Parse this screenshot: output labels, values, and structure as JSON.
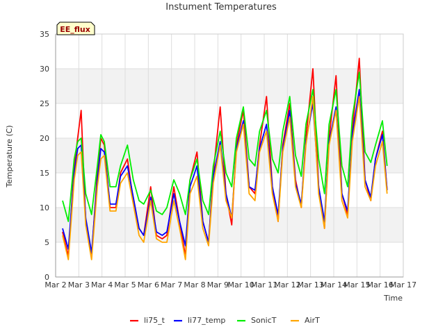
{
  "chart_data": {
    "type": "line",
    "title": "Instument Temperatures",
    "xlabel": "Time",
    "ylabel": "Temperature (C)",
    "annotation": "EE_flux",
    "xlim": [
      2.0,
      17.0
    ],
    "ylim": [
      0,
      35
    ],
    "x_ticks": [
      {
        "value": 2,
        "label": "Mar 2"
      },
      {
        "value": 3,
        "label": "Mar 3"
      },
      {
        "value": 4,
        "label": "Mar 4"
      },
      {
        "value": 5,
        "label": "Mar 5"
      },
      {
        "value": 6,
        "label": "Mar 6"
      },
      {
        "value": 7,
        "label": "Mar 7"
      },
      {
        "value": 8,
        "label": "Mar 8"
      },
      {
        "value": 9,
        "label": "Mar 9"
      },
      {
        "value": 10,
        "label": "Mar 10"
      },
      {
        "value": 11,
        "label": "Mar 11"
      },
      {
        "value": 12,
        "label": "Mar 12"
      },
      {
        "value": 13,
        "label": "Mar 13"
      },
      {
        "value": 14,
        "label": "Mar 14"
      },
      {
        "value": 15,
        "label": "Mar 15"
      },
      {
        "value": 16,
        "label": "Mar 16"
      },
      {
        "value": 17,
        "label": "Mar 17"
      }
    ],
    "y_ticks": [
      0,
      5,
      10,
      15,
      20,
      25,
      30,
      35
    ],
    "grid": true,
    "legend_position": "bottom-center",
    "series": [
      {
        "name": "li75_t",
        "color": "#ff0000",
        "x": [
          2.3,
          2.55,
          2.8,
          2.95,
          3.1,
          3.3,
          3.55,
          3.8,
          3.95,
          4.1,
          4.35,
          4.6,
          4.8,
          5.1,
          5.35,
          5.6,
          5.8,
          6.1,
          6.35,
          6.6,
          6.8,
          7.1,
          7.35,
          7.6,
          7.8,
          8.1,
          8.35,
          8.6,
          8.8,
          9.1,
          9.35,
          9.6,
          9.8,
          10.1,
          10.35,
          10.6,
          10.8,
          11.1,
          11.35,
          11.6,
          11.8,
          12.1,
          12.35,
          12.6,
          12.8,
          13.1,
          13.35,
          13.6,
          13.8,
          14.1,
          14.35,
          14.6,
          14.8,
          15.1,
          15.35,
          15.6,
          15.8,
          16.1,
          16.3
        ],
        "y": [
          6.5,
          3.0,
          16.0,
          20.0,
          24.0,
          8.0,
          3.0,
          15.0,
          20.0,
          19.0,
          10.0,
          10.0,
          15.0,
          17.0,
          11.0,
          7.0,
          6.0,
          13.0,
          6.0,
          5.5,
          6.0,
          13.0,
          8.0,
          3.0,
          14.0,
          18.0,
          8.0,
          5.0,
          15.0,
          24.5,
          12.0,
          7.5,
          19.0,
          24.0,
          13.0,
          12.0,
          19.0,
          26.0,
          13.0,
          8.0,
          19.0,
          25.0,
          14.0,
          10.0,
          20.0,
          30.0,
          13.0,
          7.0,
          20.0,
          29.0,
          12.0,
          9.0,
          21.0,
          31.5,
          14.0,
          11.0,
          17.0,
          21.0,
          12.5
        ]
      },
      {
        "name": "li77_temp",
        "color": "#0000ff",
        "x": [
          2.3,
          2.55,
          2.8,
          2.95,
          3.1,
          3.3,
          3.55,
          3.8,
          3.95,
          4.1,
          4.35,
          4.6,
          4.8,
          5.1,
          5.35,
          5.6,
          5.8,
          6.1,
          6.35,
          6.6,
          6.8,
          7.1,
          7.35,
          7.6,
          7.8,
          8.1,
          8.35,
          8.6,
          8.8,
          9.1,
          9.35,
          9.6,
          9.8,
          10.1,
          10.35,
          10.6,
          10.8,
          11.1,
          11.35,
          11.6,
          11.8,
          12.1,
          12.35,
          12.6,
          12.8,
          13.1,
          13.35,
          13.6,
          13.8,
          14.1,
          14.35,
          14.6,
          14.8,
          15.1,
          15.35,
          15.6,
          15.8,
          16.1,
          16.3
        ],
        "y": [
          7.0,
          4.0,
          15.0,
          18.5,
          19.0,
          8.5,
          3.5,
          14.0,
          18.5,
          18.0,
          10.5,
          10.5,
          14.5,
          16.0,
          11.5,
          7.0,
          6.0,
          11.5,
          6.5,
          6.0,
          6.5,
          12.0,
          8.0,
          4.5,
          13.0,
          16.0,
          8.0,
          5.0,
          14.5,
          19.5,
          12.0,
          8.5,
          18.5,
          22.5,
          13.0,
          12.5,
          18.5,
          22.0,
          13.0,
          9.0,
          18.5,
          24.0,
          13.5,
          10.5,
          19.5,
          25.0,
          13.0,
          8.0,
          19.5,
          24.5,
          12.0,
          9.5,
          20.5,
          27.0,
          14.0,
          11.5,
          17.0,
          20.5,
          12.5
        ]
      },
      {
        "name": "SonicT",
        "color": "#00ee00",
        "x": [
          2.3,
          2.55,
          2.8,
          2.95,
          3.1,
          3.3,
          3.55,
          3.8,
          3.95,
          4.1,
          4.35,
          4.6,
          4.8,
          5.1,
          5.35,
          5.6,
          5.8,
          6.1,
          6.35,
          6.6,
          6.8,
          7.1,
          7.35,
          7.6,
          7.8,
          8.1,
          8.35,
          8.6,
          8.8,
          9.1,
          9.35,
          9.6,
          9.8,
          10.1,
          10.35,
          10.6,
          10.8,
          11.1,
          11.35,
          11.6,
          11.8,
          12.1,
          12.35,
          12.6,
          12.8,
          13.1,
          13.35,
          13.6,
          13.8,
          14.1,
          14.35,
          14.6,
          14.8,
          15.1,
          15.35,
          15.6,
          15.8,
          16.1,
          16.3
        ],
        "y": [
          11.0,
          8.0,
          17.0,
          19.5,
          20.0,
          12.0,
          9.0,
          16.0,
          20.5,
          19.5,
          13.0,
          13.0,
          16.0,
          19.0,
          14.0,
          11.0,
          10.5,
          12.5,
          9.5,
          9.0,
          10.0,
          14.0,
          12.0,
          9.0,
          14.0,
          17.0,
          11.0,
          9.0,
          16.0,
          21.0,
          15.0,
          13.0,
          20.0,
          24.5,
          17.0,
          16.0,
          21.0,
          24.0,
          17.0,
          15.0,
          21.0,
          26.0,
          17.5,
          14.5,
          22.0,
          27.0,
          17.0,
          12.0,
          22.0,
          27.0,
          16.0,
          13.0,
          23.0,
          29.5,
          18.0,
          16.5,
          19.0,
          22.5,
          16.0
        ]
      },
      {
        "name": "AirT",
        "color": "#ffa500",
        "x": [
          2.3,
          2.55,
          2.8,
          2.95,
          3.1,
          3.3,
          3.55,
          3.8,
          3.95,
          4.1,
          4.35,
          4.6,
          4.8,
          5.1,
          5.35,
          5.6,
          5.8,
          6.1,
          6.35,
          6.6,
          6.8,
          7.1,
          7.35,
          7.6,
          7.8,
          8.1,
          8.35,
          8.6,
          8.8,
          9.1,
          9.35,
          9.6,
          9.8,
          10.1,
          10.35,
          10.6,
          10.8,
          11.1,
          11.35,
          11.6,
          11.8,
          12.1,
          12.35,
          12.6,
          12.8,
          13.1,
          13.35,
          13.6,
          13.8,
          14.1,
          14.35,
          14.6,
          14.8,
          15.1,
          15.35,
          15.6,
          15.8,
          16.1,
          16.3
        ],
        "y": [
          6.0,
          2.5,
          14.0,
          17.5,
          18.0,
          7.5,
          2.5,
          13.0,
          17.0,
          17.5,
          9.5,
          9.5,
          13.5,
          15.0,
          10.5,
          6.0,
          5.0,
          11.0,
          5.5,
          5.0,
          5.0,
          11.0,
          7.0,
          2.5,
          12.0,
          14.5,
          7.0,
          4.5,
          13.5,
          19.0,
          11.0,
          8.5,
          18.0,
          22.0,
          12.0,
          11.0,
          18.0,
          21.0,
          12.0,
          8.0,
          18.0,
          23.0,
          13.0,
          10.0,
          19.0,
          26.0,
          12.0,
          7.0,
          19.0,
          24.0,
          11.0,
          8.5,
          19.5,
          26.0,
          13.0,
          11.0,
          16.0,
          19.5,
          12.0
        ]
      }
    ]
  }
}
